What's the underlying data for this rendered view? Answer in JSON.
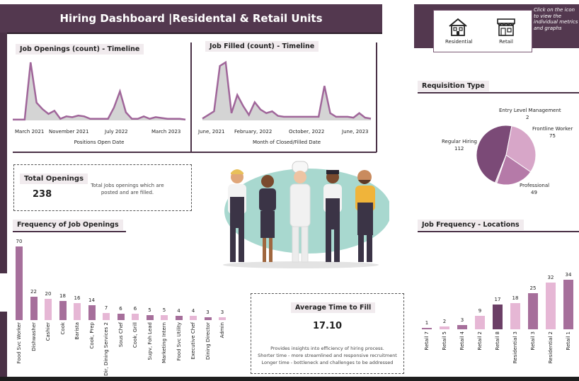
{
  "header": {
    "title": "Hiring Dashboard |Residental & Retail Units",
    "hint": "Click on the icon to view the individual metrics and graphs",
    "icons": [
      {
        "label": "Residential",
        "icon": "house-icon"
      },
      {
        "label": "Retail",
        "icon": "storefront-icon"
      }
    ]
  },
  "colors": {
    "plum": "#53384f",
    "bar_dark": "#a66f9b",
    "bar_light": "#e6b7d5",
    "line": "#a0669a",
    "fill": "#d4d4d4"
  },
  "openings_timeline": {
    "title": "Job Openings (count) -  Timeline",
    "xlabel": "Positions Open Date",
    "ticks": [
      "March 2021",
      "November 2021",
      "July 2022",
      "March 2023"
    ]
  },
  "filled_timeline": {
    "title": "Job Filled (count) -  Timeline",
    "xlabel": "Month of Closed/Filled Date",
    "ticks": [
      "June, 2021",
      "February, 2022",
      "October, 2022",
      "June, 2023"
    ]
  },
  "total_openings": {
    "title": "Total Openings",
    "value": "238",
    "desc": "Total Jobs openings which are posted and are filled."
  },
  "avg_fill": {
    "title": "Average Time to Fill",
    "value": "17.10",
    "desc1": "Provides insights into efficiency of hiring process.",
    "desc2": "Shorter time - more streamlined and responsive recruitment",
    "desc3": "Longer time - bottleneck and challenges to be addressed"
  },
  "requisition": {
    "title": "Requisition Type",
    "labels": [
      {
        "name": "Entry Level Management",
        "value": "2"
      },
      {
        "name": "Frontline Worker",
        "value": "75"
      },
      {
        "name": "Professional",
        "value": "49"
      },
      {
        "name": "Regular Hiring",
        "value": "112"
      }
    ]
  },
  "frequency": {
    "title": "Frequency of Job Openings"
  },
  "locations": {
    "title": "Job Frequency -  Locations"
  },
  "chart_data": [
    {
      "type": "area",
      "title": "Job Openings (count) -  Timeline",
      "xlabel": "Positions Open Date",
      "x_ticks": [
        "March 2021",
        "November 2021",
        "July 2022",
        "March 2023"
      ],
      "y": [
        1,
        1,
        1,
        72,
        22,
        14,
        8,
        12,
        2,
        5,
        4,
        6,
        5,
        2,
        2,
        2,
        2,
        16,
        36,
        10,
        2,
        2,
        5,
        2,
        4,
        3,
        2,
        2,
        2,
        1
      ]
    },
    {
      "type": "area",
      "title": "Job Filled (count) -  Timeline",
      "xlabel": "Month of Closed/Filled Date",
      "x_ticks": [
        "June, 2021",
        "February, 2022",
        "October, 2022",
        "June, 2023"
      ],
      "y": [
        2,
        6,
        10,
        60,
        64,
        8,
        28,
        16,
        6,
        20,
        12,
        8,
        10,
        5,
        4,
        4,
        4,
        4,
        4,
        4,
        4,
        38,
        8,
        4,
        4,
        4,
        3,
        8,
        3,
        2
      ]
    },
    {
      "type": "bar",
      "title": "Frequency of Job Openings",
      "categories": [
        "Food Svc Worker",
        "Dishwasher",
        "Cashier",
        "Cook",
        "Barista",
        "Cook, Prep",
        "Dir, Dining Services 2",
        "Sous Chef",
        "Cook, Grill",
        "Supv, Foh Lead",
        "Marketing Intern",
        "Food Svc Utility",
        "Executive Chef",
        "Dining Director",
        "Admin"
      ],
      "values": [
        70,
        22,
        20,
        18,
        16,
        14,
        7,
        6,
        6,
        5,
        5,
        4,
        4,
        3,
        3
      ]
    },
    {
      "type": "bar",
      "title": "Job Frequency -  Locations",
      "categories": [
        "Retail 7",
        "Retail 5",
        "Retail 4",
        "Retail 2",
        "Retail 8",
        "Residential 3",
        "Retail 3",
        "Residential 2",
        "Retail 1"
      ],
      "values": [
        1,
        2,
        3,
        9,
        17,
        18,
        25,
        32,
        34
      ]
    },
    {
      "type": "pie",
      "title": "Requisition Type",
      "categories": [
        "Regular Hiring",
        "Frontline Worker",
        "Professional",
        "Entry Level Management"
      ],
      "values": [
        112,
        75,
        49,
        2
      ]
    }
  ]
}
